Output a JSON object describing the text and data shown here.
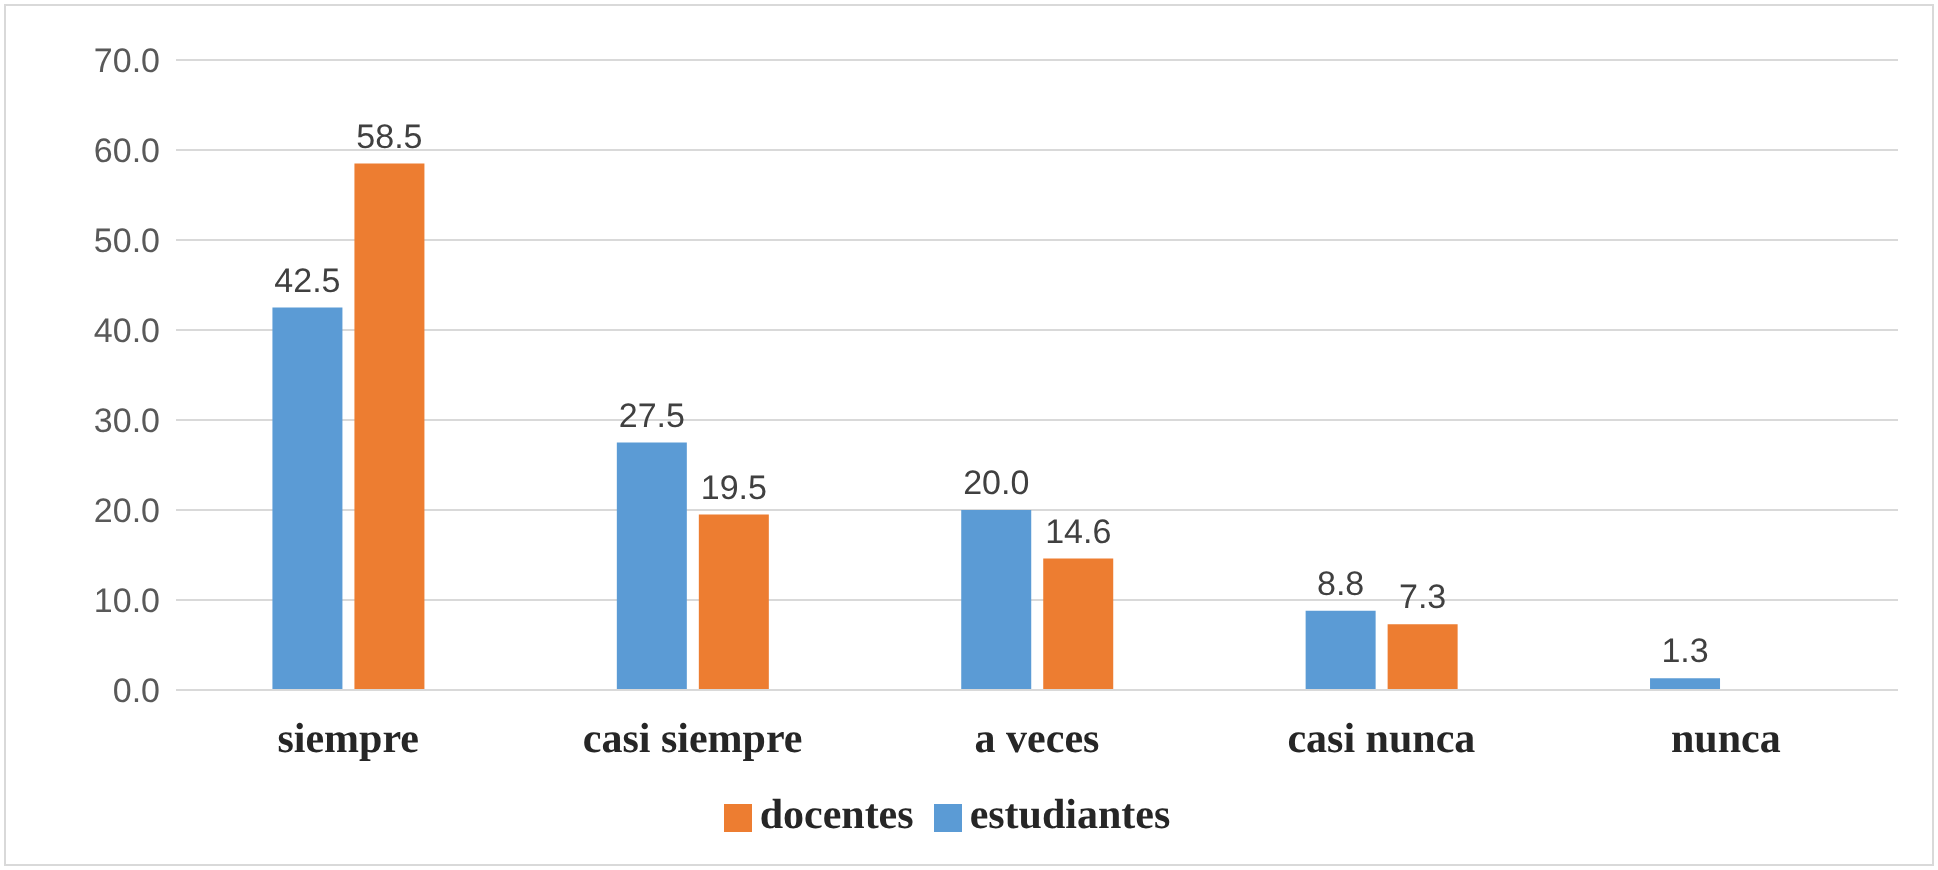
{
  "chart_data": {
    "type": "bar",
    "categories": [
      "siempre",
      "casi siempre",
      "a veces",
      "casi nunca",
      "nunca"
    ],
    "series": [
      {
        "name": "estudiantes",
        "color": "#5b9bd5",
        "values": [
          42.5,
          27.5,
          20.0,
          8.8,
          1.3
        ],
        "value_labels": [
          "42.5",
          "27.5",
          "20.0",
          "8.8",
          "1.3"
        ]
      },
      {
        "name": "docentes",
        "color": "#ed7d31",
        "values": [
          58.5,
          19.5,
          14.6,
          7.3,
          null
        ],
        "value_labels": [
          "58.5",
          "19.5",
          "14.6",
          "7.3",
          null
        ]
      }
    ],
    "ylim": [
      0,
      70
    ],
    "yticks": [
      {
        "value": 0,
        "label": "0.0"
      },
      {
        "value": 10,
        "label": "10.0"
      },
      {
        "value": 20,
        "label": "20.0"
      },
      {
        "value": 30,
        "label": "30.0"
      },
      {
        "value": 40,
        "label": "40.0"
      },
      {
        "value": 50,
        "label": "50.0"
      },
      {
        "value": 60,
        "label": "60.0"
      },
      {
        "value": 70,
        "label": "70.0"
      }
    ],
    "grid": "y",
    "legend": "bottom"
  }
}
